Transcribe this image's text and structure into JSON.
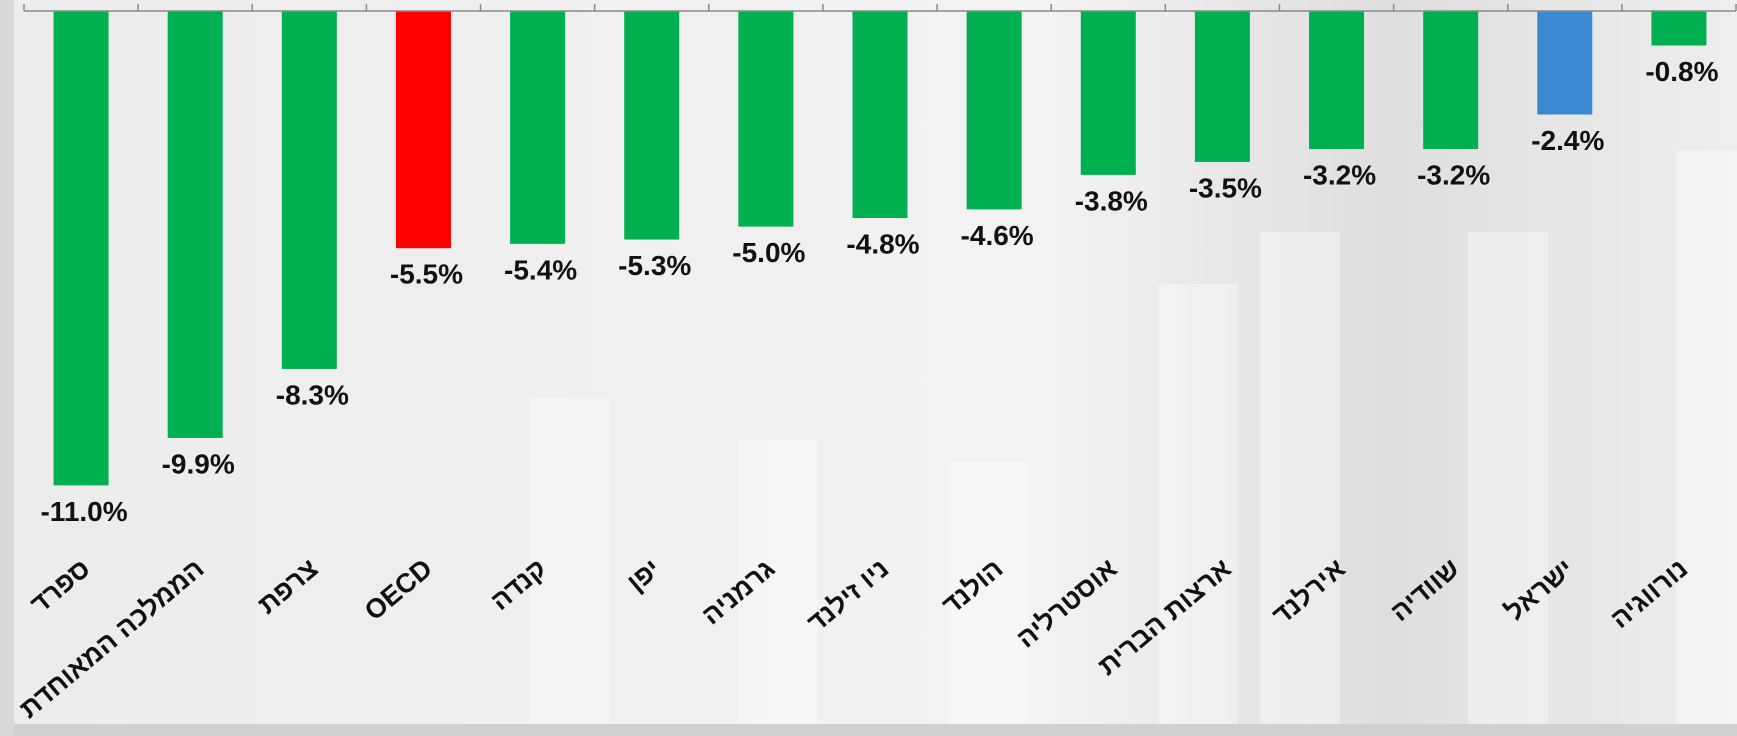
{
  "chart_data": {
    "type": "bar",
    "categories": [
      "ספרד",
      "הממלכה המאוחדת",
      "צרפת",
      "OECD",
      "קנדה",
      "יפן",
      "גרמניה",
      "ניו זילנד",
      "הולנד",
      "אוסטרליה",
      "ארצות הברית",
      "אירלנד",
      "שוודיה",
      "ישראל",
      "נורווגיה"
    ],
    "values": [
      -11.0,
      -9.9,
      -8.3,
      -5.5,
      -5.4,
      -5.3,
      -5.0,
      -4.8,
      -4.6,
      -3.8,
      -3.5,
      -3.2,
      -3.2,
      -2.4,
      -0.8
    ],
    "value_labels": [
      "-11.0%",
      "-9.9%",
      "-8.3%",
      "-5.5%",
      "-5.4%",
      "-5.3%",
      "-5.0%",
      "-4.8%",
      "-4.6%",
      "-3.8%",
      "-3.5%",
      "-3.2%",
      "-3.2%",
      "-2.4%",
      "-0.8%"
    ],
    "colors": [
      "#00b050",
      "#00b050",
      "#00b050",
      "#ff0000",
      "#00b050",
      "#00b050",
      "#00b050",
      "#00b050",
      "#00b050",
      "#00b050",
      "#00b050",
      "#00b050",
      "#00b050",
      "#3a88d0",
      "#00b050"
    ],
    "ylim": [
      -16,
      0
    ]
  }
}
